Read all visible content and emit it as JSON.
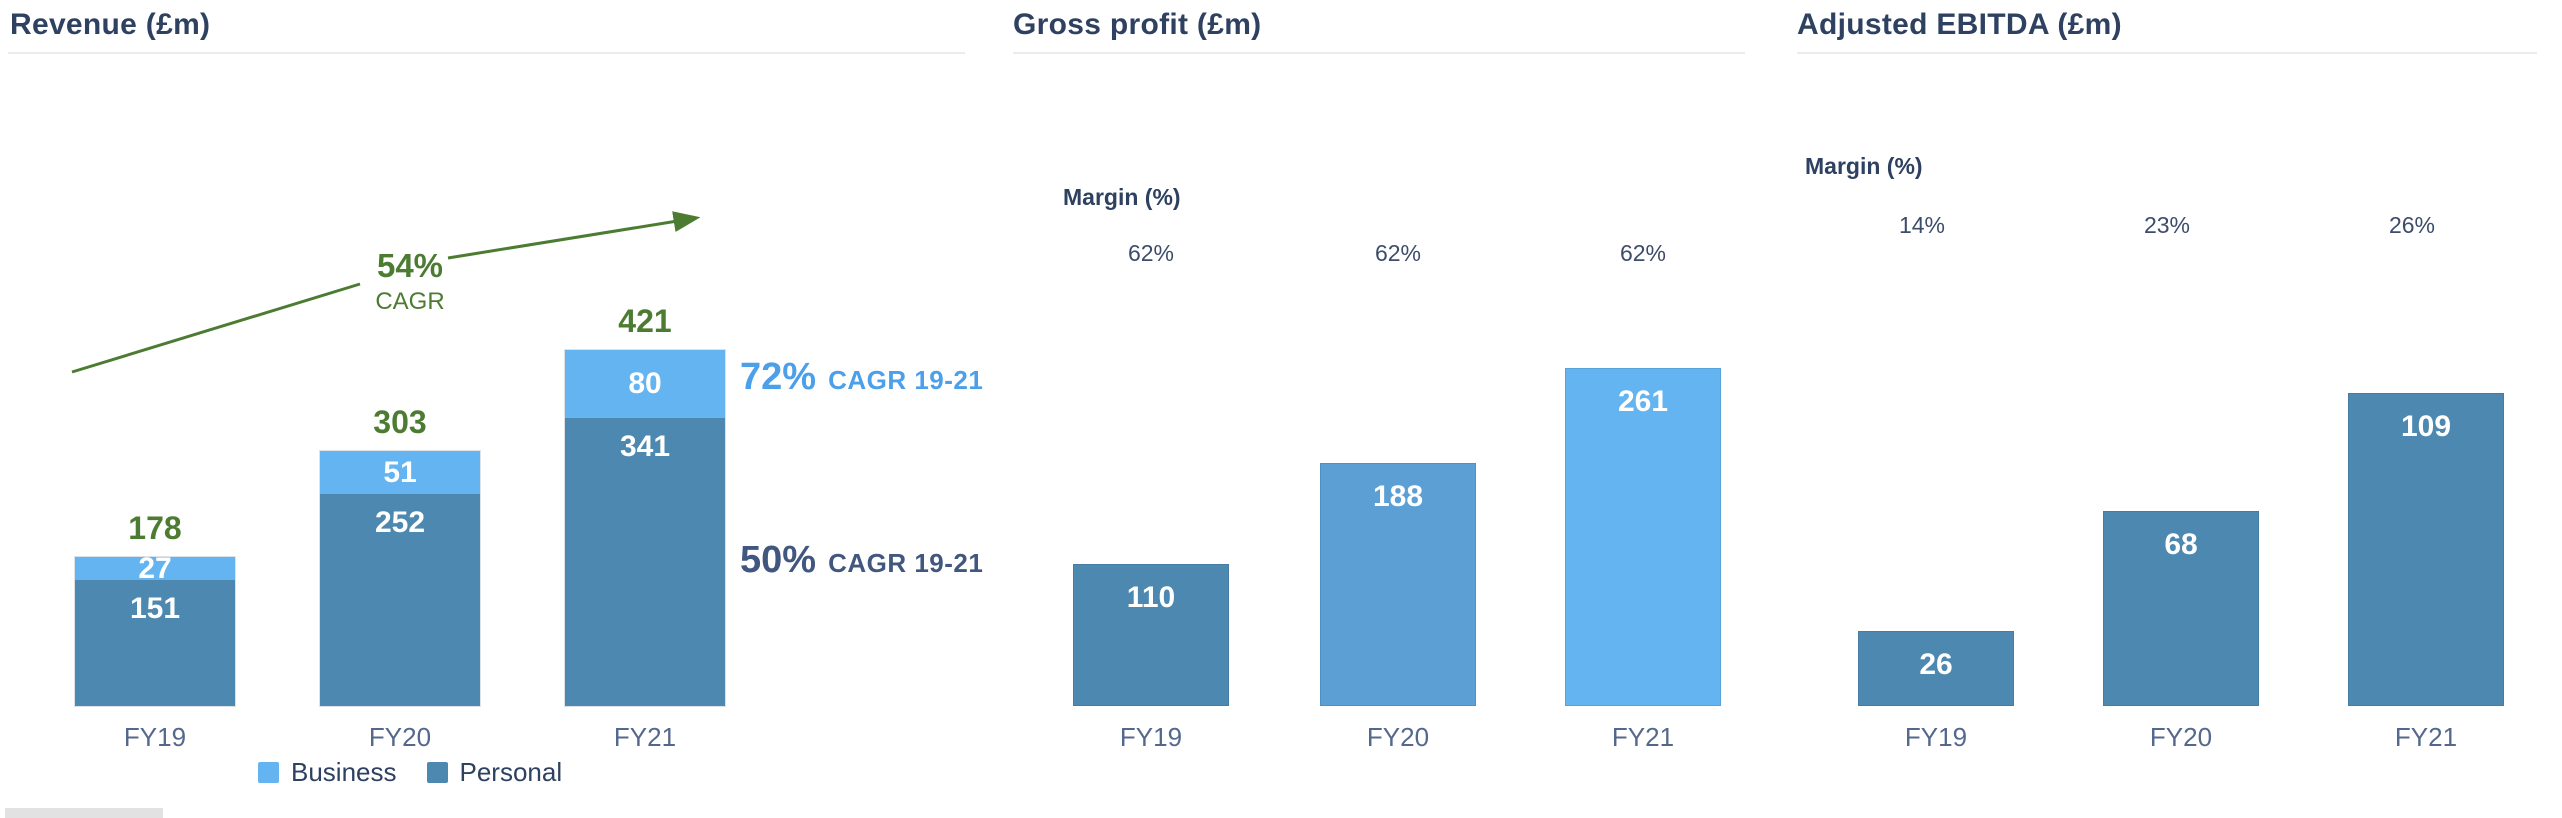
{
  "page": {
    "background": "#ffffff",
    "palette": {
      "bg": "#ffffff",
      "title_navy": "#2e4160",
      "axis_slate": "#54688d",
      "margin_value_navy": "#3d4c6b",
      "green": "#4c7b32",
      "light_blue": "#63b4f0",
      "medium_blue": "#5b9fd4",
      "steel_blue": "#4d88b1",
      "annotation_blue": "#4c9fe9",
      "annotation_navy": "#42577f",
      "underline_gray": "#ececec",
      "stub_gray": "#e2e2e2",
      "bar_value_white": "#ffffff"
    }
  },
  "chart_data": [
    {
      "type": "bar",
      "stacked": true,
      "title": "Revenue (£m)",
      "categories": [
        "FY19",
        "FY20",
        "FY21"
      ],
      "series": [
        {
          "name": "Business",
          "values": [
            27,
            51,
            80
          ],
          "color": "#63b4f0"
        },
        {
          "name": "Personal",
          "values": [
            151,
            252,
            341
          ],
          "color": "#4d88b1"
        }
      ],
      "totals": [
        178,
        303,
        421
      ],
      "legend_position": "bottom",
      "grid": false,
      "value_axis_hidden": true,
      "growth_arrow": {
        "value": "54%",
        "label": "CAGR",
        "color": "#4c7b32"
      },
      "series_cagr_notes": [
        {
          "series": "Business",
          "value": "72%",
          "label": "CAGR 19-21",
          "color": "#4c9fe9"
        },
        {
          "series": "Personal",
          "value": "50%",
          "label": "CAGR 19-21",
          "color": "#42577f"
        }
      ]
    },
    {
      "type": "bar",
      "title": "Gross profit (£m)",
      "categories": [
        "FY19",
        "FY20",
        "FY21"
      ],
      "values": [
        110,
        188,
        261
      ],
      "bar_colors": [
        "#4d88b1",
        "#5b9fd4",
        "#63b4f0"
      ],
      "margin_row": {
        "label": "Margin (%)",
        "values": [
          "62%",
          "62%",
          "62%"
        ]
      },
      "grid": false,
      "value_axis_hidden": true
    },
    {
      "type": "bar",
      "title": "Adjusted EBITDA (£m)",
      "categories": [
        "FY19",
        "FY20",
        "FY21"
      ],
      "values": [
        26,
        68,
        109
      ],
      "bar_colors": [
        "#4d88b1",
        "#4d88b1",
        "#4d88b1"
      ],
      "margin_row": {
        "label": "Margin (%)",
        "values": [
          "14%",
          "23%",
          "26%"
        ]
      },
      "grid": false,
      "value_axis_hidden": true
    }
  ]
}
